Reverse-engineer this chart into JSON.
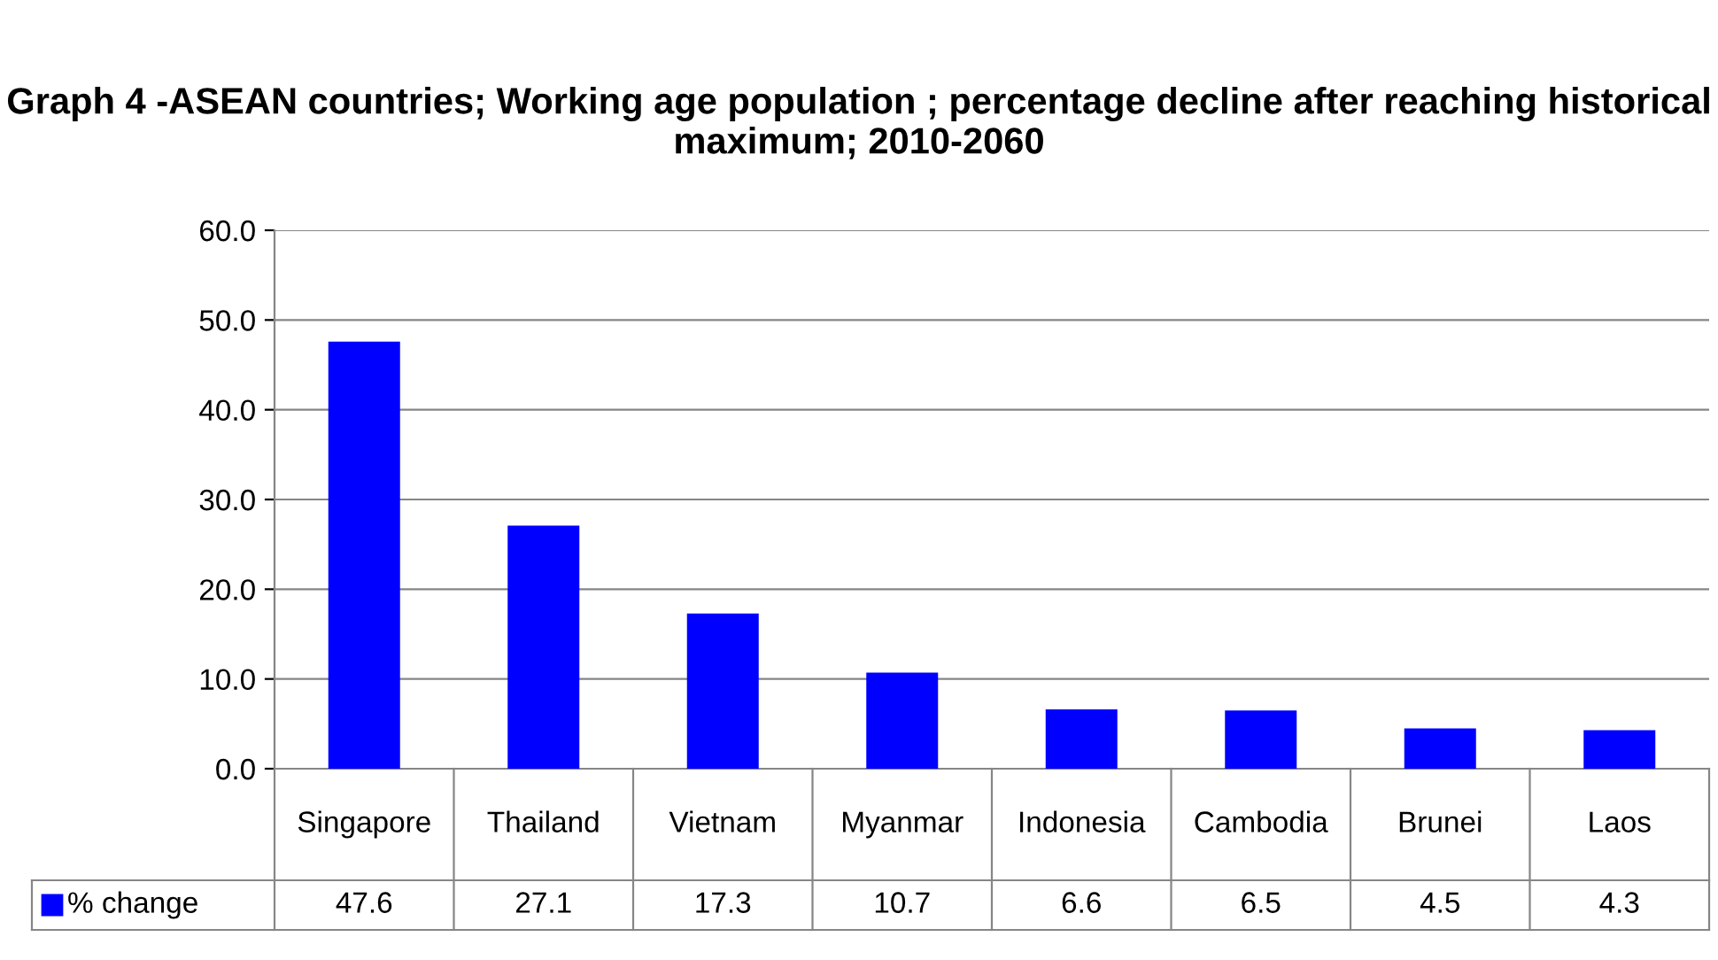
{
  "chart_data": {
    "type": "bar",
    "title": "Graph 4 -ASEAN countries; Working age population ; percentage decline after reaching historical maximum; 2010-2060",
    "categories": [
      "Singapore",
      "Thailand",
      "Vietnam",
      "Myanmar",
      "Indonesia",
      "Cambodia",
      "Brunei",
      "Laos"
    ],
    "series": [
      {
        "name": "% change",
        "color": "#0000ff",
        "values": [
          47.6,
          27.1,
          17.3,
          10.7,
          6.6,
          6.5,
          4.5,
          4.3
        ]
      }
    ],
    "ylim": [
      0,
      60
    ],
    "yticks": [
      {
        "value": 0,
        "label": "0.0"
      },
      {
        "value": 10,
        "label": "10.0"
      },
      {
        "value": 20,
        "label": "20.0"
      },
      {
        "value": 30,
        "label": "30.0"
      },
      {
        "value": 40,
        "label": "40.0"
      },
      {
        "value": 50,
        "label": "50.0"
      },
      {
        "value": 60,
        "label": "60.0"
      }
    ],
    "grid": "y",
    "legend": "bottom",
    "data_labels": true
  }
}
